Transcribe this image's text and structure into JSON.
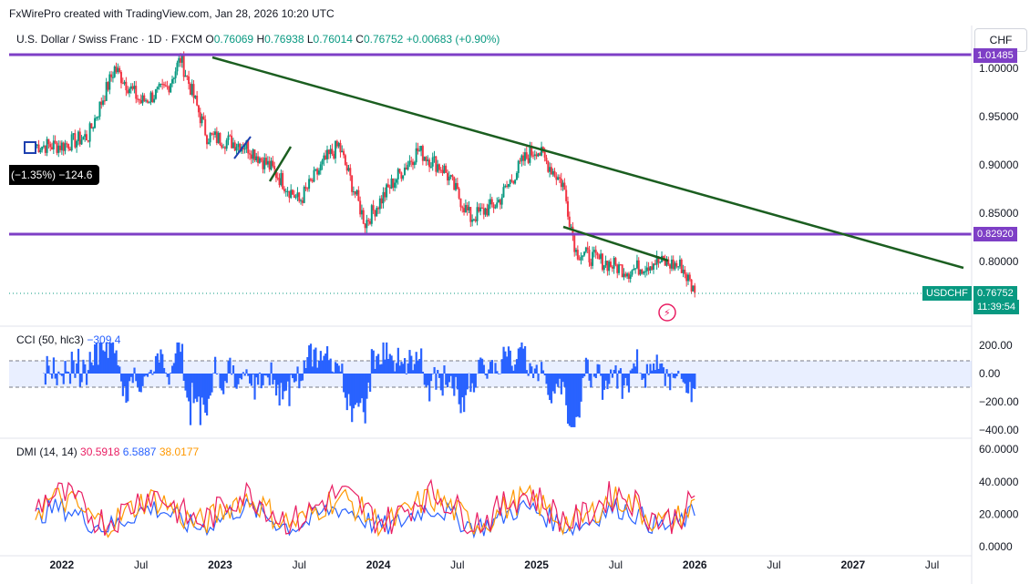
{
  "header": {
    "credit": "FxWirePro created with TradingView.com, Jan 28, 2026 10:20 UTC"
  },
  "legend": {
    "symbol": "U.S. Dollar / Swiss Franc · 1D · FXCM",
    "o_label": "O",
    "o": "0.76069",
    "h_label": "H",
    "h": "0.76938",
    "l_label": "L",
    "l": "0.76014",
    "c_label": "C",
    "c": "0.76752",
    "change": "+0.00683 (+0.90%)"
  },
  "currency_button": "CHF",
  "price_tags": {
    "top_level": "1.01485",
    "support_level": "0.82920",
    "symbol_tag": "USDCHF",
    "last_price": "0.76752",
    "countdown": "11:39:54"
  },
  "measure_label": "(−1.35%) −124.6",
  "price_axis": [
    "1.00000",
    "0.95000",
    "0.90000",
    "0.85000",
    "0.80000"
  ],
  "cci": {
    "label": "CCI (50, hlc3)",
    "value": "−309.4",
    "axis": [
      "200.00",
      "0.00",
      "−200.00",
      "−400.00"
    ]
  },
  "dmi": {
    "label": "DMI (14, 14)",
    "plus": "30.5918",
    "minus": "6.5887",
    "adx": "38.0177",
    "axis": [
      "60.0000",
      "40.0000",
      "20.0000",
      "0.0000"
    ]
  },
  "time_axis": [
    "2022",
    "Jul",
    "2023",
    "Jul",
    "2024",
    "Jul",
    "2025",
    "Jul",
    "2026",
    "Jul",
    "2027",
    "Jul"
  ],
  "colors": {
    "up": "#089981",
    "down": "#f23645",
    "level": "#7e3fc6",
    "trend": "#1b5e20",
    "cci": "#2962ff",
    "dmi_plus": "#e91e63",
    "dmi_minus": "#2962ff",
    "adx": "#ff9800"
  },
  "chart_data": {
    "type": "candlestick",
    "symbol": "USDCHF",
    "x_range": [
      "2021-09",
      "2027-10"
    ],
    "y_range": [
      0.745,
      1.02
    ],
    "price_path": [
      [
        "2021-11",
        0.92
      ],
      [
        "2022-01",
        0.92
      ],
      [
        "2022-03",
        0.93
      ],
      [
        "2022-05",
        1.0
      ],
      [
        "2022-07",
        0.965
      ],
      [
        "2022-09",
        0.98
      ],
      [
        "2022-10",
        1.01
      ],
      [
        "2022-12",
        0.93
      ],
      [
        "2023-03",
        0.92
      ],
      [
        "2023-05",
        0.895
      ],
      [
        "2023-07",
        0.862
      ],
      [
        "2023-09",
        0.905
      ],
      [
        "2023-10",
        0.92
      ],
      [
        "2023-12",
        0.84
      ],
      [
        "2024-02",
        0.88
      ],
      [
        "2024-04",
        0.915
      ],
      [
        "2024-06",
        0.895
      ],
      [
        "2024-08",
        0.845
      ],
      [
        "2024-10",
        0.86
      ],
      [
        "2024-12",
        0.905
      ],
      [
        "2025-01",
        0.917
      ],
      [
        "2025-03",
        0.88
      ],
      [
        "2025-04",
        0.81
      ],
      [
        "2025-06",
        0.8
      ],
      [
        "2025-08",
        0.79
      ],
      [
        "2025-10",
        0.8
      ],
      [
        "2025-12",
        0.795
      ],
      [
        "2026-01",
        0.76752
      ]
    ],
    "horizontal_levels": [
      1.01485,
      0.8292
    ],
    "trendlines": [
      {
        "from": [
          "2022-11",
          1.01
        ],
        "to": [
          "2027-10",
          0.795
        ]
      },
      {
        "from": [
          "2025-04",
          0.838
        ],
        "to": [
          "2026-01",
          0.8
        ]
      },
      {
        "from": [
          "2023-04",
          0.88
        ],
        "to": [
          "2023-06",
          0.9
        ]
      },
      {
        "from": [
          "2023-05",
          0.882
        ],
        "to": [
          "2023-07",
          0.92
        ]
      }
    ],
    "indicators": {
      "cci_range": [
        -400,
        200
      ],
      "dmi_range": [
        0,
        60
      ]
    }
  }
}
